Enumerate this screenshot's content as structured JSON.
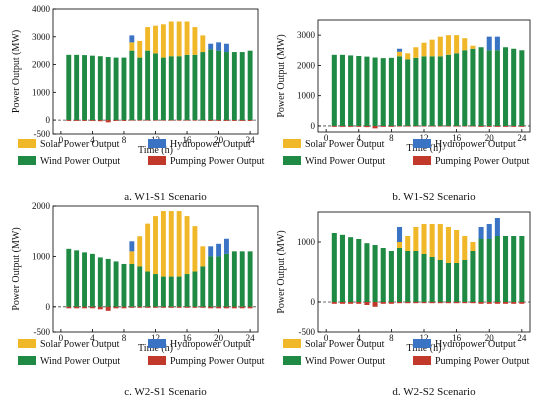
{
  "colors": {
    "solar": "#F0B829",
    "hydro": "#3A73C4",
    "wind": "#1E8A43",
    "pumping": "#C0392B"
  },
  "legend": [
    {
      "key": "solar",
      "label": "Solar Power Output"
    },
    {
      "key": "hydro",
      "label": "Hydropower Output"
    },
    {
      "key": "wind",
      "label": "Wind Power Output"
    },
    {
      "key": "pumping",
      "label": "Pumping Power Output"
    }
  ],
  "chart_data": [
    {
      "type": "bar",
      "stacked": true,
      "caption": "a. W1-S1 Scenario",
      "xlabel": "Time (h)",
      "ylabel": "Power Output (MW)",
      "xlim": [
        -1,
        25
      ],
      "ylim": [
        -500,
        4000
      ],
      "xticks": [
        0,
        4,
        8,
        12,
        16,
        20,
        24
      ],
      "yticks": [
        -500,
        0,
        1000,
        2000,
        3000,
        4000
      ],
      "x": [
        1,
        2,
        3,
        4,
        5,
        6,
        7,
        8,
        9,
        10,
        11,
        12,
        13,
        14,
        15,
        16,
        17,
        18,
        19,
        20,
        21,
        22,
        23,
        24
      ],
      "series": [
        {
          "key": "wind",
          "name": "Wind Power Output",
          "values": [
            2350,
            2350,
            2340,
            2320,
            2300,
            2270,
            2250,
            2250,
            2500,
            2250,
            2500,
            2400,
            2250,
            2300,
            2300,
            2350,
            2350,
            2450,
            2550,
            2500,
            2450,
            2450,
            2450,
            2500
          ]
        },
        {
          "key": "solar",
          "name": "Solar Power Output",
          "values": [
            0,
            0,
            0,
            0,
            0,
            0,
            0,
            0,
            300,
            600,
            850,
            1000,
            1200,
            1250,
            1250,
            1200,
            1000,
            600,
            0,
            0,
            0,
            0,
            0,
            0
          ]
        },
        {
          "key": "hydro",
          "name": "Hydropower Output",
          "values": [
            0,
            0,
            0,
            0,
            0,
            0,
            0,
            0,
            250,
            0,
            0,
            0,
            0,
            0,
            0,
            0,
            0,
            0,
            200,
            300,
            300,
            0,
            0,
            0
          ]
        },
        {
          "key": "pumping",
          "name": "Pumping Power Output",
          "values": [
            -30,
            -30,
            -30,
            -30,
            -40,
            -80,
            -30,
            -30,
            -20,
            -20,
            -20,
            -20,
            -20,
            -20,
            -20,
            -20,
            -20,
            -20,
            -30,
            -30,
            -30,
            -30,
            -30,
            -30
          ]
        }
      ]
    },
    {
      "type": "bar",
      "stacked": true,
      "caption": "b. W1-S2 Scenario",
      "xlabel": "Time (h)",
      "ylabel": "Power Output (MW)",
      "xlim": [
        -1,
        25
      ],
      "ylim": [
        -200,
        3500
      ],
      "xticks": [
        0,
        4,
        8,
        12,
        16,
        20,
        24
      ],
      "yticks": [
        0,
        1000,
        2000,
        3000
      ],
      "x": [
        1,
        2,
        3,
        4,
        5,
        6,
        7,
        8,
        9,
        10,
        11,
        12,
        13,
        14,
        15,
        16,
        17,
        18,
        19,
        20,
        21,
        22,
        23,
        24
      ],
      "series": [
        {
          "key": "wind",
          "name": "Wind Power Output",
          "values": [
            2350,
            2350,
            2330,
            2310,
            2290,
            2260,
            2240,
            2250,
            2300,
            2200,
            2250,
            2300,
            2300,
            2300,
            2350,
            2400,
            2500,
            2550,
            2600,
            2500,
            2500,
            2600,
            2550,
            2500
          ]
        },
        {
          "key": "solar",
          "name": "Solar Power Output",
          "values": [
            0,
            0,
            0,
            0,
            0,
            0,
            0,
            0,
            150,
            200,
            350,
            450,
            550,
            650,
            650,
            600,
            400,
            100,
            0,
            0,
            0,
            0,
            0,
            0
          ]
        },
        {
          "key": "hydro",
          "name": "Hydropower Output",
          "values": [
            0,
            0,
            0,
            0,
            0,
            0,
            0,
            0,
            100,
            0,
            0,
            0,
            0,
            0,
            0,
            0,
            0,
            0,
            0,
            450,
            450,
            0,
            0,
            0
          ]
        },
        {
          "key": "pumping",
          "name": "Pumping Power Output",
          "values": [
            -30,
            -30,
            -30,
            -30,
            -40,
            -80,
            -30,
            -30,
            -20,
            -20,
            -20,
            -20,
            -20,
            -20,
            -20,
            -20,
            -20,
            -20,
            -30,
            -30,
            -30,
            -30,
            -30,
            -30
          ]
        }
      ]
    },
    {
      "type": "bar",
      "stacked": true,
      "caption": "c. W2-S1 Scenario",
      "xlabel": "Time (h)",
      "ylabel": "Power Output (MW)",
      "xlim": [
        -1,
        25
      ],
      "ylim": [
        -500,
        2000
      ],
      "xticks": [
        0,
        4,
        8,
        12,
        16,
        20,
        24
      ],
      "yticks": [
        -500,
        0,
        1000,
        2000
      ],
      "x": [
        1,
        2,
        3,
        4,
        5,
        6,
        7,
        8,
        9,
        10,
        11,
        12,
        13,
        14,
        15,
        16,
        17,
        18,
        19,
        20,
        21,
        22,
        23,
        24
      ],
      "series": [
        {
          "key": "wind",
          "name": "Wind Power Output",
          "values": [
            1150,
            1120,
            1080,
            1050,
            980,
            950,
            900,
            850,
            850,
            800,
            700,
            650,
            600,
            600,
            600,
            650,
            700,
            800,
            1000,
            1000,
            1050,
            1100,
            1100,
            1100
          ]
        },
        {
          "key": "solar",
          "name": "Solar Power Output",
          "values": [
            0,
            0,
            0,
            0,
            0,
            0,
            0,
            0,
            250,
            600,
            950,
            1150,
            1300,
            1300,
            1300,
            1150,
            900,
            400,
            0,
            0,
            0,
            0,
            0,
            0
          ]
        },
        {
          "key": "hydro",
          "name": "Hydropower Output",
          "values": [
            0,
            0,
            0,
            0,
            0,
            0,
            0,
            0,
            200,
            0,
            0,
            0,
            0,
            0,
            0,
            0,
            0,
            0,
            200,
            250,
            300,
            0,
            0,
            0
          ]
        },
        {
          "key": "pumping",
          "name": "Pumping Power Output",
          "values": [
            -30,
            -30,
            -30,
            -30,
            -50,
            -80,
            -30,
            -30,
            -20,
            -20,
            -20,
            -20,
            -20,
            -20,
            -20,
            -20,
            -20,
            -20,
            -30,
            -30,
            -30,
            -30,
            -30,
            -30
          ]
        }
      ]
    },
    {
      "type": "bar",
      "stacked": true,
      "caption": "d. W2-S2 Scenario",
      "xlabel": "Time (h)",
      "ylabel": "Power Output (MW)",
      "xlim": [
        -1,
        25
      ],
      "ylim": [
        -500,
        1500
      ],
      "xticks": [
        0,
        4,
        8,
        12,
        16,
        20,
        24
      ],
      "yticks": [
        -500,
        0,
        1000
      ],
      "x": [
        1,
        2,
        3,
        4,
        5,
        6,
        7,
        8,
        9,
        10,
        11,
        12,
        13,
        14,
        15,
        16,
        17,
        18,
        19,
        20,
        21,
        22,
        23,
        24
      ],
      "series": [
        {
          "key": "wind",
          "name": "Wind Power Output",
          "values": [
            1150,
            1120,
            1080,
            1050,
            980,
            950,
            900,
            850,
            900,
            850,
            850,
            800,
            750,
            700,
            650,
            650,
            700,
            850,
            1050,
            1050,
            1100,
            1100,
            1100,
            1100
          ]
        },
        {
          "key": "solar",
          "name": "Solar Power Output",
          "values": [
            0,
            0,
            0,
            0,
            0,
            0,
            0,
            0,
            100,
            250,
            400,
            500,
            550,
            600,
            600,
            550,
            400,
            150,
            0,
            0,
            0,
            0,
            0,
            0
          ]
        },
        {
          "key": "hydro",
          "name": "Hydropower Output",
          "values": [
            0,
            0,
            0,
            0,
            0,
            0,
            0,
            0,
            250,
            0,
            0,
            0,
            0,
            0,
            0,
            0,
            0,
            0,
            200,
            250,
            300,
            0,
            0,
            0
          ]
        },
        {
          "key": "pumping",
          "name": "Pumping Power Output",
          "values": [
            -30,
            -30,
            -30,
            -30,
            -50,
            -80,
            -30,
            -30,
            -20,
            -20,
            -20,
            -20,
            -20,
            -20,
            -20,
            -20,
            -20,
            -20,
            -30,
            -30,
            -30,
            -30,
            -30,
            -30
          ]
        }
      ]
    }
  ]
}
